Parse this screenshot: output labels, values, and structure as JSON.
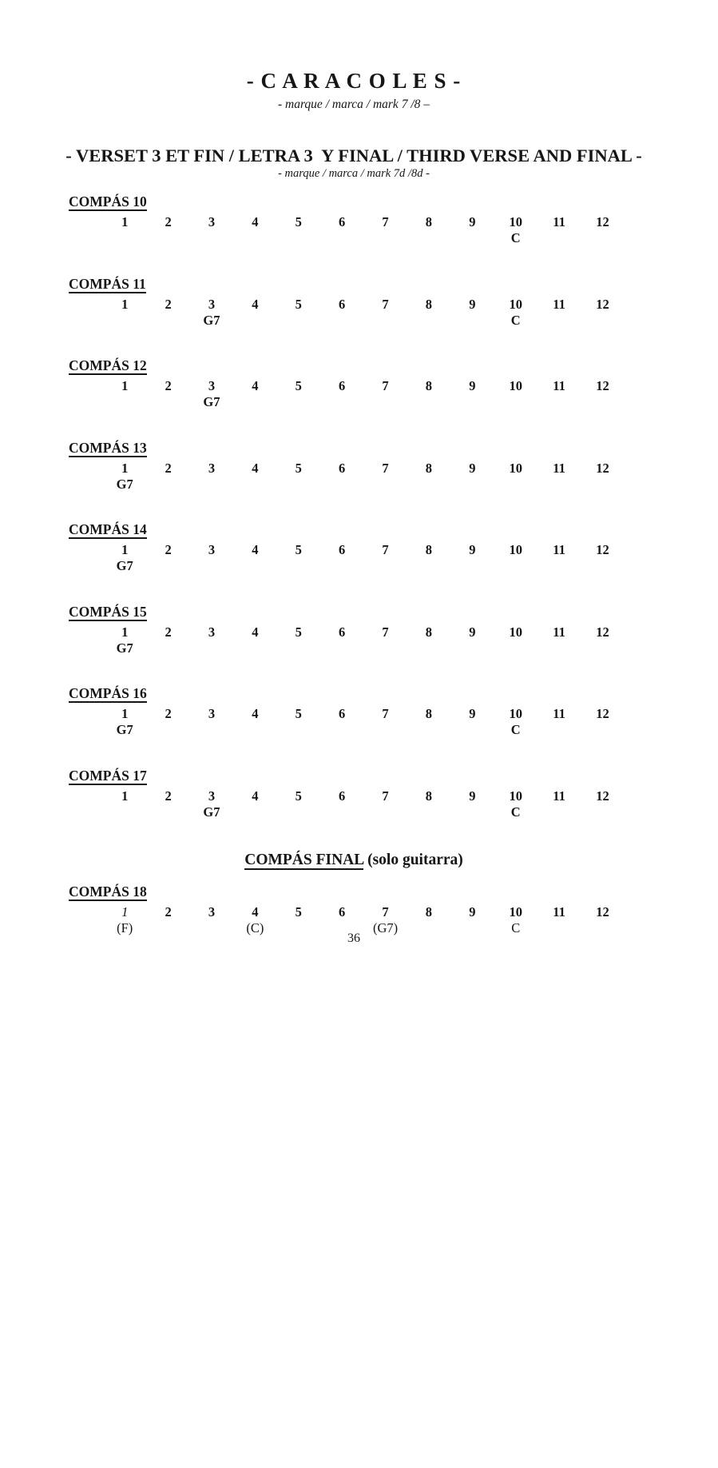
{
  "header": {
    "title": "- C A R A C O L E S -",
    "subtitle": "- marque / marca / mark 7 /8 –",
    "section_heading": "- VERSET 3 ET FIN / LETRA 3  Y FINAL / THIRD VERSE AND FINAL -",
    "section_subtitle": "- marque / marca / mark 7d /8d -"
  },
  "beats": [
    "1",
    "2",
    "3",
    "4",
    "5",
    "6",
    "7",
    "8",
    "9",
    "10",
    "11",
    "12"
  ],
  "compases": [
    {
      "label": "COMPÁS 10",
      "chords": {
        "10": "C"
      }
    },
    {
      "label": "COMPÁS 11",
      "chords": {
        "3": "G7",
        "10": "C"
      }
    },
    {
      "label": "COMPÁS 12",
      "chords": {
        "3": "G7"
      }
    },
    {
      "label": "COMPÁS 13",
      "chords": {
        "1": "G7"
      }
    },
    {
      "label": "COMPÁS 14",
      "chords": {
        "1": "G7"
      }
    },
    {
      "label": "COMPÁS 15",
      "chords": {
        "1": "G7"
      }
    },
    {
      "label": "COMPÁS 16",
      "chords": {
        "1": "G7",
        "10": "C"
      }
    },
    {
      "label": "COMPÁS 17",
      "chords": {
        "3": "G7",
        "10": "C"
      }
    },
    {
      "label": "COMPÁS 18",
      "plain_chords": true,
      "italic_beats": [
        "1"
      ],
      "chords": {
        "1": "(F)",
        "4": "(C)",
        "7": "(G7)",
        "10": "C"
      },
      "pre_heading": {
        "title": "COMPÁS FINAL",
        "note": "(solo guitarra)"
      }
    }
  ],
  "footer": {
    "page_number": "36"
  },
  "colors": {
    "ink": "#161616",
    "paper": "#ffffff"
  }
}
